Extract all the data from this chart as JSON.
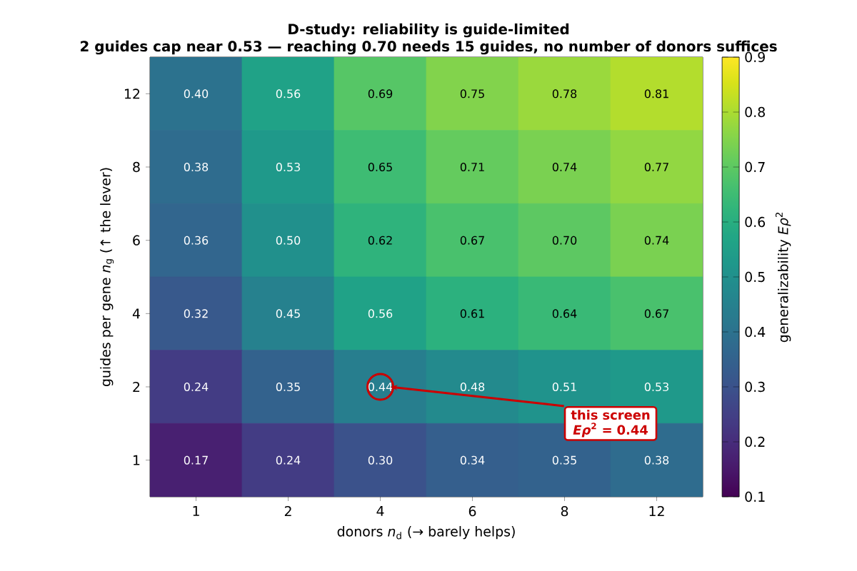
{
  "chart_data": {
    "type": "heatmap",
    "title": "D-study: reliability is guide-limited",
    "subtitle": "2 guides cap near 0.53 — reaching 0.70 needs 15 guides, no number of donors suffices",
    "xlabel": "donors  *n*$_{d}$   (→ barely helps)",
    "ylabel": "guides per gene  *n*$_{g}$   (↑ the lever)",
    "clabel": "generalizability  *Eρ*$^{2}$",
    "categories": [
      "1",
      "2",
      "4",
      "6",
      "8",
      "12"
    ],
    "y_categories": [
      "12",
      "8",
      "6",
      "4",
      "2",
      "1"
    ],
    "cells": [
      [
        0.4,
        0.56,
        0.69,
        0.75,
        0.78,
        0.81
      ],
      [
        0.38,
        0.53,
        0.65,
        0.71,
        0.74,
        0.77
      ],
      [
        0.36,
        0.5,
        0.62,
        0.67,
        0.7,
        0.74
      ],
      [
        0.32,
        0.45,
        0.56,
        0.61,
        0.64,
        0.67
      ],
      [
        0.24,
        0.35,
        0.44,
        0.48,
        0.51,
        0.53
      ],
      [
        0.17,
        0.24,
        0.3,
        0.34,
        0.35,
        0.38
      ]
    ],
    "cell_labels": [
      [
        "0.40",
        "0.56",
        "0.69",
        "0.75",
        "0.78",
        "0.81"
      ],
      [
        "0.38",
        "0.53",
        "0.65",
        "0.71",
        "0.74",
        "0.77"
      ],
      [
        "0.36",
        "0.50",
        "0.62",
        "0.67",
        "0.70",
        "0.74"
      ],
      [
        "0.32",
        "0.45",
        "0.56",
        "0.61",
        "0.64",
        "0.67"
      ],
      [
        "0.24",
        "0.35",
        "0.44",
        "0.48",
        "0.51",
        "0.53"
      ],
      [
        "0.17",
        "0.24",
        "0.30",
        "0.34",
        "0.35",
        "0.38"
      ]
    ],
    "clim": [
      0.1,
      0.9
    ],
    "cticks": [
      0.1,
      0.2,
      0.3,
      0.4,
      0.5,
      0.6,
      0.7,
      0.8,
      0.9
    ],
    "annotations": [
      "this screen *Eρ*$^{2}$ = 0.44"
    ]
  }
}
